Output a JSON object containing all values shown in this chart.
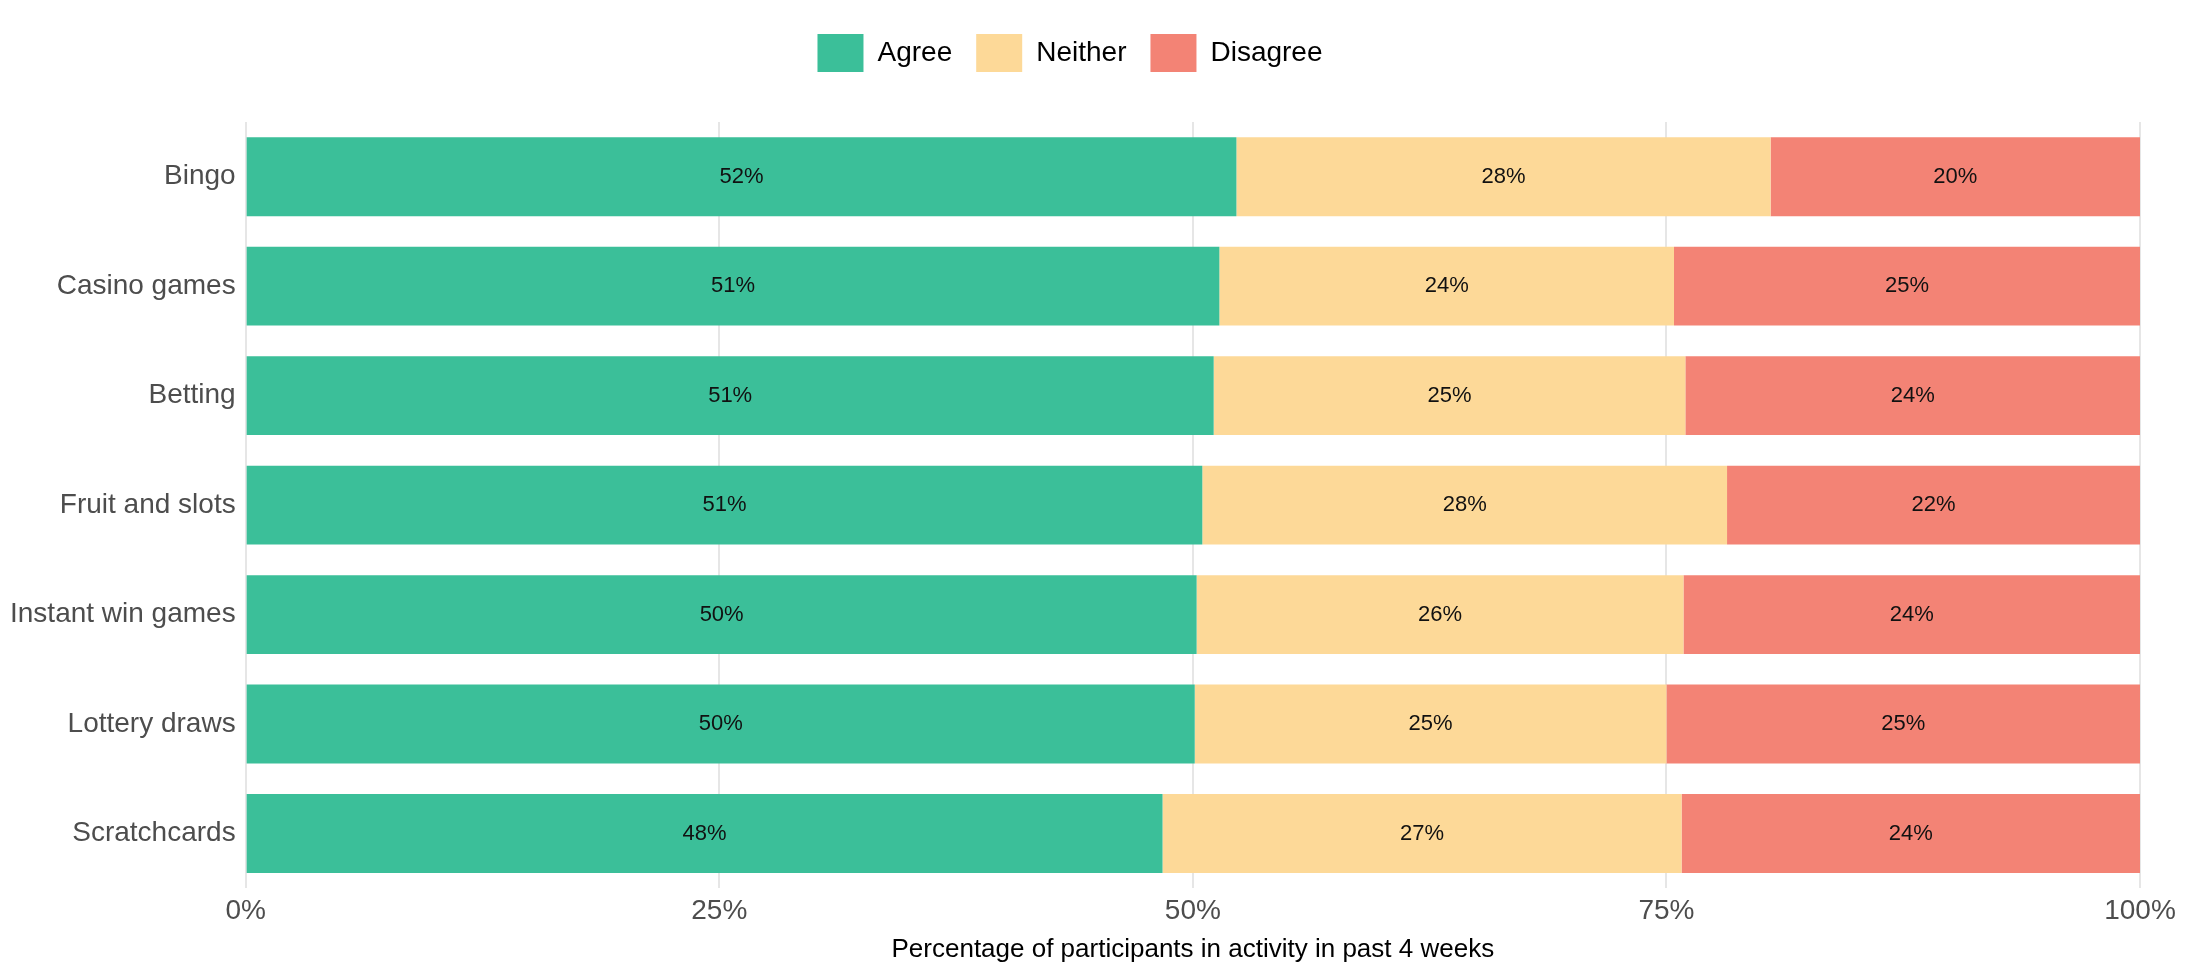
{
  "chart_data": {
    "type": "bar",
    "orientation": "horizontal",
    "stacked": true,
    "xlabel": "Percentage of participants in activity in past 4 weeks",
    "categories": [
      "Bingo",
      "Casino games",
      "Betting",
      "Fruit and slots",
      "Instant win games",
      "Lottery draws",
      "Scratchcards"
    ],
    "series": [
      {
        "name": "Agree",
        "color": "#3bbf99",
        "values": [
          52.3,
          51.4,
          51.1,
          50.5,
          50.2,
          50.1,
          48.4
        ],
        "value_labels": [
          "52%",
          "51%",
          "51%",
          "51%",
          "50%",
          "50%",
          "48%"
        ]
      },
      {
        "name": "Neither",
        "color": "#fdd998",
        "values": [
          28.2,
          24.0,
          24.9,
          27.7,
          25.7,
          24.9,
          27.4
        ],
        "value_labels": [
          "28%",
          "24%",
          "25%",
          "28%",
          "26%",
          "25%",
          "27%"
        ]
      },
      {
        "name": "Disagree",
        "color": "#f38375",
        "values": [
          19.5,
          24.6,
          24.0,
          21.8,
          24.1,
          25.0,
          24.2
        ],
        "value_labels": [
          "20%",
          "25%",
          "24%",
          "22%",
          "24%",
          "25%",
          "24%"
        ]
      }
    ],
    "xlim": [
      0,
      100
    ],
    "xticks": [
      {
        "value": 0,
        "label": "0%"
      },
      {
        "value": 25,
        "label": "25%"
      },
      {
        "value": 50,
        "label": "50%"
      },
      {
        "value": 75,
        "label": "75%"
      },
      {
        "value": 100,
        "label": "100%"
      }
    ],
    "grid": "x",
    "legend": "top"
  }
}
